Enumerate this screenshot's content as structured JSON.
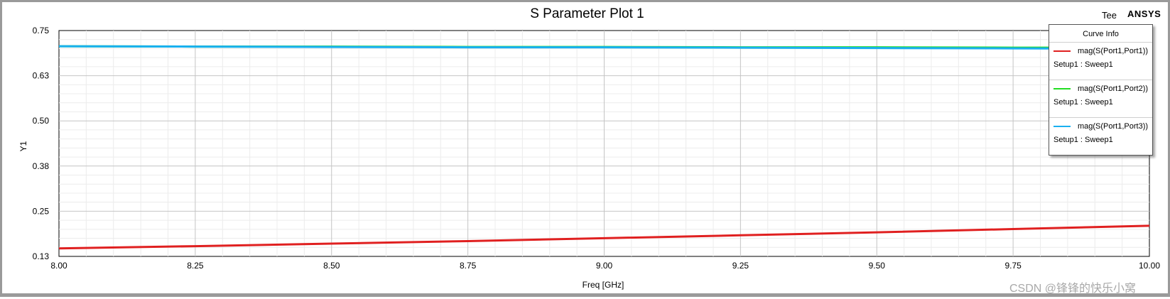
{
  "brand": {
    "left": "Tee",
    "right": "ANSYS"
  },
  "watermark": "CSDN @锋锋的快乐小窝",
  "chart_data": {
    "type": "line",
    "title": "S Parameter Plot 1",
    "xlabel": "Freq [GHz]",
    "ylabel": "Y1",
    "xlim": [
      8.0,
      10.0
    ],
    "ylim": [
      0.13,
      0.75
    ],
    "xticks": [
      "8.00",
      "8.25",
      "8.50",
      "8.75",
      "9.00",
      "9.25",
      "9.50",
      "9.75",
      "10.00"
    ],
    "yticks": [
      "0.75",
      "0.63",
      "0.50",
      "0.38",
      "0.25",
      "0.13"
    ],
    "grid": true,
    "legend_title": "Curve Info",
    "legend_position": "top-right",
    "x": [
      8.0,
      8.25,
      8.5,
      8.75,
      9.0,
      9.25,
      9.5,
      9.75,
      10.0
    ],
    "series": [
      {
        "name": "mag(S(Port1,Port1))",
        "setup": "Setup1 : Sweep1",
        "color": "#e02020",
        "values": [
          0.152,
          0.158,
          0.165,
          0.172,
          0.18,
          0.188,
          0.196,
          0.205,
          0.214
        ]
      },
      {
        "name": "mag(S(Port1,Port2))",
        "setup": "Setup1 : Sweep1",
        "color": "#22dd22",
        "values": [
          0.707,
          0.706,
          0.706,
          0.705,
          0.705,
          0.704,
          0.704,
          0.703,
          0.703
        ]
      },
      {
        "name": "mag(S(Port1,Port3))",
        "setup": "Setup1 : Sweep1",
        "color": "#1ab0f0",
        "values": [
          0.707,
          0.706,
          0.705,
          0.704,
          0.704,
          0.703,
          0.702,
          0.701,
          0.7
        ]
      }
    ]
  }
}
